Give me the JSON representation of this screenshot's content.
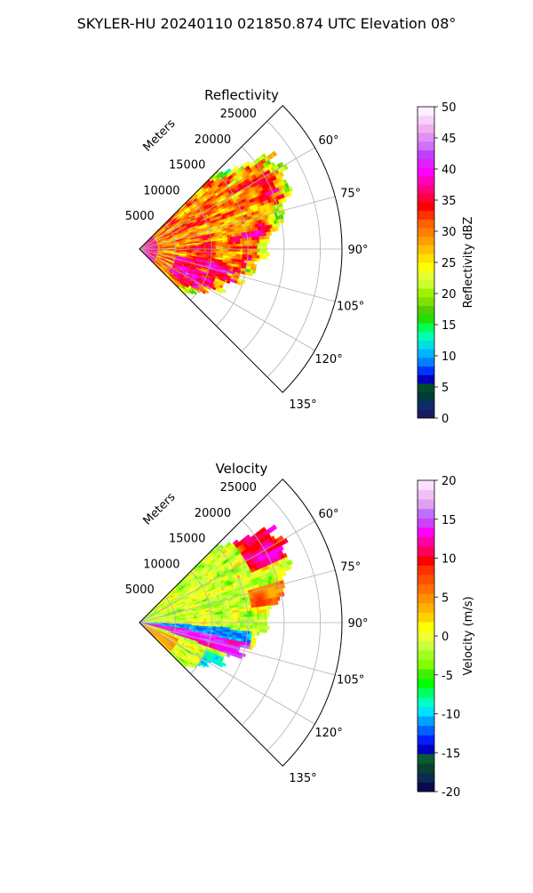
{
  "title": "SKYLER-HU  20240110  021850.874 UTC Elevation 08°",
  "chart_data": [
    {
      "type": "heatmap",
      "title": "Reflectivity",
      "projection": "polar",
      "angle_range_deg": [
        45,
        135
      ],
      "range_unit_label": "Meters",
      "range_ticks": [
        5000,
        10000,
        15000,
        20000,
        25000
      ],
      "angle_ticks": [
        "60°",
        "75°",
        "90°",
        "105°",
        "120°",
        "135°"
      ],
      "colorbar": {
        "label": "Reflectivity dBZ",
        "range": [
          0,
          50
        ],
        "ticks": [
          "0",
          "5",
          "10",
          "15",
          "20",
          "25",
          "30",
          "35",
          "40",
          "45",
          "50"
        ]
      },
      "dominant_values": "mostly 20–38 dBZ, scattered 35–38 dBZ cores, 15–20 dBZ at edges"
    },
    {
      "type": "heatmap",
      "title": "Velocity",
      "projection": "polar",
      "angle_range_deg": [
        45,
        135
      ],
      "range_unit_label": "Meters",
      "range_ticks": [
        5000,
        10000,
        15000,
        20000,
        25000
      ],
      "angle_ticks": [
        "60°",
        "75°",
        "90°",
        "105°",
        "120°",
        "135°"
      ],
      "colorbar": {
        "label": "Velocity (m/s)",
        "range": [
          -20,
          20
        ],
        "ticks": [
          "-20",
          "-15",
          "-10",
          "-5",
          "0",
          "5",
          "10",
          "15",
          "20"
        ]
      },
      "dominant_values": "mostly -8 to 0 m/s, inbound -12 m/s band near 95°, outbound 10–15 m/s band near 100–110°"
    }
  ]
}
